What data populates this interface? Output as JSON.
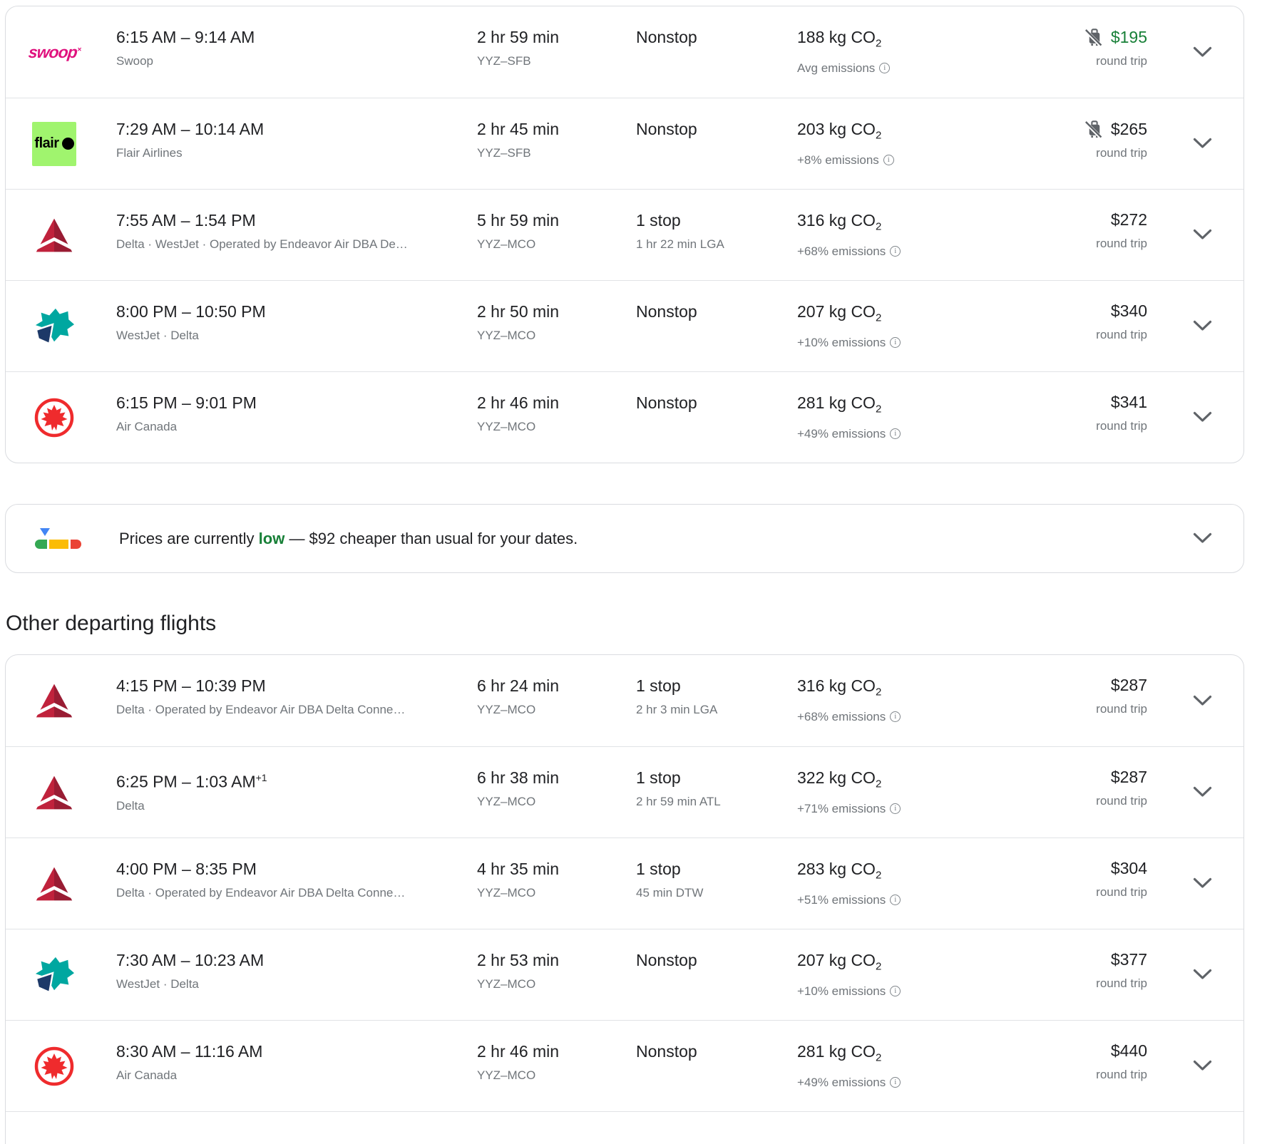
{
  "labels": {
    "co2_sub": "2"
  },
  "colors": {
    "primary_text": "#202124",
    "secondary_text": "#70757a",
    "price_low_green": "#188038",
    "row_border": "#dadce0",
    "swoop_pink": "#e0127e",
    "flair_green": "#a0f46e",
    "delta_red_light": "#c0223c",
    "delta_red_dark": "#991c33",
    "westjet_teal": "#00a7a0",
    "westjet_navy": "#1d3968",
    "air_canada_red": "#ef2b2d",
    "insights_blue": "#4285f4",
    "insights_green": "#34a853",
    "insights_yellow": "#fbbc04",
    "insights_red": "#ea4335"
  },
  "logos": {
    "swoop_text": "swoop",
    "swoop_mark": "×",
    "flair_text": "flair"
  },
  "best_flights": [
    {
      "logo": "swoop",
      "airline": "Swoop",
      "time": "6:15 AM – 9:14 AM",
      "time_sup": "",
      "duration": "2 hr 59 min",
      "route": "YYZ–SFB",
      "stops": "Nonstop",
      "stop_detail": "",
      "co2": "188 kg CO",
      "emissions": "Avg emissions",
      "price": "$195",
      "trip": "round trip",
      "price_low": true,
      "no_carry_on": true
    },
    {
      "logo": "flair",
      "airline": "Flair Airlines",
      "time": "7:29 AM – 10:14 AM",
      "time_sup": "",
      "duration": "2 hr 45 min",
      "route": "YYZ–SFB",
      "stops": "Nonstop",
      "stop_detail": "",
      "co2": "203 kg CO",
      "emissions": "+8% emissions",
      "price": "$265",
      "trip": "round trip",
      "price_low": false,
      "no_carry_on": true
    },
    {
      "logo": "delta",
      "airline": "Delta · WestJet · Operated by Endeavor Air DBA De…",
      "time": "7:55 AM – 1:54 PM",
      "time_sup": "",
      "duration": "5 hr 59 min",
      "route": "YYZ–MCO",
      "stops": "1 stop",
      "stop_detail": "1 hr 22 min LGA",
      "co2": "316 kg CO",
      "emissions": "+68% emissions",
      "price": "$272",
      "trip": "round trip",
      "price_low": false,
      "no_carry_on": false
    },
    {
      "logo": "westjet",
      "airline": "WestJet · Delta",
      "time": "8:00 PM – 10:50 PM",
      "time_sup": "",
      "duration": "2 hr 50 min",
      "route": "YYZ–MCO",
      "stops": "Nonstop",
      "stop_detail": "",
      "co2": "207 kg CO",
      "emissions": "+10% emissions",
      "price": "$340",
      "trip": "round trip",
      "price_low": false,
      "no_carry_on": false
    },
    {
      "logo": "aircanada",
      "airline": "Air Canada",
      "time": "6:15 PM – 9:01 PM",
      "time_sup": "",
      "duration": "2 hr 46 min",
      "route": "YYZ–MCO",
      "stops": "Nonstop",
      "stop_detail": "",
      "co2": "281 kg CO",
      "emissions": "+49% emissions",
      "price": "$341",
      "trip": "round trip",
      "price_low": false,
      "no_carry_on": false
    }
  ],
  "price_banner": {
    "text_before": "Prices are currently",
    "highlight": "low",
    "text_after": "— $92 cheaper than usual for your dates."
  },
  "other_heading": "Other departing flights",
  "other_flights": [
    {
      "logo": "delta",
      "airline": "Delta · Operated by Endeavor Air DBA Delta Conne…",
      "time": "4:15 PM – 10:39 PM",
      "time_sup": "",
      "duration": "6 hr 24 min",
      "route": "YYZ–MCO",
      "stops": "1 stop",
      "stop_detail": "2 hr 3 min LGA",
      "co2": "316 kg CO",
      "emissions": "+68% emissions",
      "price": "$287",
      "trip": "round trip",
      "price_low": false,
      "no_carry_on": false
    },
    {
      "logo": "delta",
      "airline": "Delta",
      "time": "6:25 PM – 1:03 AM",
      "time_sup": "+1",
      "duration": "6 hr 38 min",
      "route": "YYZ–MCO",
      "stops": "1 stop",
      "stop_detail": "2 hr 59 min ATL",
      "co2": "322 kg CO",
      "emissions": "+71% emissions",
      "price": "$287",
      "trip": "round trip",
      "price_low": false,
      "no_carry_on": false
    },
    {
      "logo": "delta",
      "airline": "Delta · Operated by Endeavor Air DBA Delta Conne…",
      "time": "4:00 PM – 8:35 PM",
      "time_sup": "",
      "duration": "4 hr 35 min",
      "route": "YYZ–MCO",
      "stops": "1 stop",
      "stop_detail": "45 min DTW",
      "co2": "283 kg CO",
      "emissions": "+51% emissions",
      "price": "$304",
      "trip": "round trip",
      "price_low": false,
      "no_carry_on": false
    },
    {
      "logo": "westjet",
      "airline": "WestJet · Delta",
      "time": "7:30 AM – 10:23 AM",
      "time_sup": "",
      "duration": "2 hr 53 min",
      "route": "YYZ–MCO",
      "stops": "Nonstop",
      "stop_detail": "",
      "co2": "207 kg CO",
      "emissions": "+10% emissions",
      "price": "$377",
      "trip": "round trip",
      "price_low": false,
      "no_carry_on": false
    },
    {
      "logo": "aircanada",
      "airline": "Air Canada",
      "time": "8:30 AM – 11:16 AM",
      "time_sup": "",
      "duration": "2 hr 46 min",
      "route": "YYZ–MCO",
      "stops": "Nonstop",
      "stop_detail": "",
      "co2": "281 kg CO",
      "emissions": "+49% emissions",
      "price": "$440",
      "trip": "round trip",
      "price_low": false,
      "no_carry_on": false
    }
  ]
}
